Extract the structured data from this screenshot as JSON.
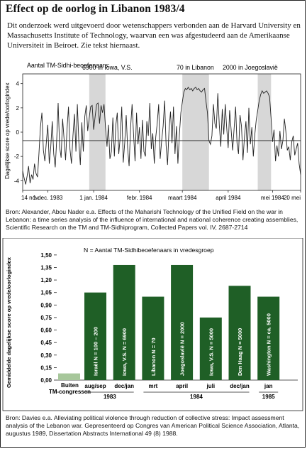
{
  "title": "Effect op de oorlog in Libanon 1983/4",
  "intro": "Dit onderzoek werd uitgevoerd door wetenschappers verbonden aan de Harvard University en Massachusetts Institute of Technology, waarvan een was afgestudeerd aan de Amerikaanse Universiteit in Beiroet. Zie tekst hiernaast.",
  "source1": "Bron: Alexander, Abou Nader e.a. Effects of the Maharishi Technology of the Unified Field on the war in Lebanon: a time series analysis of the influence of international and national coherence creating assemblies, Scientific Research on the TM and TM-Sidhiprogram, Collected Papers vol. IV, 2687-2714",
  "source2": "Bron: Davies e.a. Alleviating political violence through reduction of collective stress: Impact assessment analysis of the Lebanon war. Gepresenteerd op Congres van American Political Science Association, Atlanta, augustus 1989, Dissertation Abstracts International 49 (8) 1988.",
  "colors": {
    "bar": "#1f5f26",
    "bar_control": "#a7c79b",
    "shade": "#d7d7d7",
    "line": "#222222"
  },
  "chart_data": [
    {
      "type": "line",
      "ylabel": "Dagelijkse score op vrede/oorlogindex",
      "legend_title": "Aantal TM-Sidhi-beoefenaars:",
      "x_tick_labels": [
        "14 nov.",
        "1 dec. 1983",
        "1 jan. 1984",
        "febr. 1984",
        "maart 1984",
        "april 1984",
        "mei 1984",
        "20 mei"
      ],
      "y_tick_labels": [
        "4",
        "2",
        "0",
        "-2",
        "-4"
      ],
      "ylim": [
        -4.8,
        4.8
      ],
      "xlim": [
        0,
        188
      ],
      "x_ticks": [
        0,
        17,
        48,
        79,
        108,
        139,
        169,
        188
      ],
      "baseline": -0.7,
      "annotations": [
        {
          "label": "6900 in Iowa, V.S.",
          "start": 45,
          "end": 56
        },
        {
          "label": "70 in Libanon",
          "start": 108,
          "end": 126
        },
        {
          "label": "2000 in Joegoslavië",
          "start": 159,
          "end": 168
        }
      ],
      "series": [
        {
          "values": [
            -3.2,
            -3.8,
            -4.3,
            -3.6,
            -2.8,
            -4.2,
            -3.5,
            -3.9,
            -2.6,
            -3.4,
            -3.7,
            -1.8,
            0.4,
            1.6,
            -1.5,
            -2.4,
            -0.8,
            0.6,
            -2.6,
            -1.2,
            0.9,
            -1.8,
            -2.9,
            -0.6,
            2.4,
            -1.2,
            -2.1,
            1.1,
            -0.6,
            -2.3,
            0.3,
            2.1,
            -1.4,
            -2.6,
            -0.3,
            1.5,
            -1.6,
            2.3,
            -0.8,
            -2.7,
            0.8,
            -1.6,
            1.3,
            2.2,
            0.1,
            1.2,
            2.1,
            2.2,
            0.2,
            1.3,
            2.3,
            2.4,
            0.7,
            2.2,
            1.6,
            2.3,
            0.4,
            -1.2,
            0.6,
            -2.2,
            -1.6,
            1.2,
            -2.0,
            0.6,
            1.6,
            -1.8,
            -0.4,
            2.1,
            -2.5,
            -0.9,
            1.4,
            -1.3,
            -2.8,
            0.4,
            2.3,
            -0.2,
            -2.4,
            1.6,
            -1.0,
            0.4,
            -2.2,
            1.0,
            -1.6,
            -2.0,
            0.9,
            -0.3,
            2.4,
            -1.4,
            -0.1,
            -2.6,
            -0.4,
            0.7,
            2.3,
            -2.2,
            -0.7,
            0.5,
            2.6,
            -1.1,
            -2.7,
            0.2,
            1.7,
            -0.9,
            2.1,
            -1.8,
            0.5,
            -2.6,
            -0.2,
            1.6,
            2.5,
            3.3,
            3.6,
            3.5,
            3.7,
            3.5,
            3.6,
            3.4,
            3.6,
            3.7,
            3.5,
            3.6,
            3.4,
            3.3,
            3.5,
            3.6,
            2.5,
            1.6,
            -0.7,
            -1.0,
            -0.3,
            2.3,
            0.7,
            0.3,
            3.2,
            0.6,
            -1.2,
            1.9,
            -0.2,
            2.3,
            0.4,
            -1.3,
            1.8,
            0.2,
            -1.5,
            0.3,
            2.1,
            -0.9,
            -1.8,
            1.4,
            0.5,
            -2.3,
            -0.4,
            0.9,
            -1.7,
            2.0,
            -1.0,
            0.4,
            -2.0,
            -0.2,
            1.0,
            1.8,
            2.6,
            3.1,
            3.4,
            3.2,
            3.3,
            3.4,
            3.2,
            2.9,
            1.2,
            -0.8,
            0.2,
            -2.4,
            -1.1,
            -2.0,
            0.1,
            -1.4,
            -0.7,
            1.1,
            0.1,
            -1.5,
            -1.2,
            -2.3,
            -0.8,
            -0.3,
            -1.9,
            -1.4,
            -0.9,
            -2.6,
            -3.5
          ]
        }
      ]
    },
    {
      "type": "bar",
      "ylabel": "Gemiddelde dagelijkse score op vrede/oorlogindex",
      "legend": "N = Aantal TM-Sidhibeoefenaars in vredesgroep",
      "ylim": [
        0,
        1.55
      ],
      "y_tick_labels": [
        "1,50",
        "1,35",
        "1,20",
        "1,05",
        "0,90",
        "0,75",
        "0,60",
        "0,45",
        "0,30",
        "0,15",
        "0,00"
      ],
      "bars": [
        {
          "category": "Buiten TM-congressen",
          "value": 0.08,
          "inner_label": "",
          "control": true
        },
        {
          "category": "aug/sep",
          "value": 1.05,
          "inner_label": "Israël N = 100 – 200"
        },
        {
          "category": "dec/jan",
          "value": 1.38,
          "inner_label": "Iowa, V.S. N = 6900"
        },
        {
          "category": "mrt",
          "value": 1.0,
          "inner_label": "Libanon N = 70"
        },
        {
          "category": "april",
          "value": 1.38,
          "inner_label": "Joegoslavië N = 2000"
        },
        {
          "category": "juli",
          "value": 0.75,
          "inner_label": "Iowa, V.S. N = 5000"
        },
        {
          "category": "dec/jan",
          "value": 1.13,
          "inner_label": "Den Haag N = 5000"
        },
        {
          "category": "jan",
          "value": 1.0,
          "inner_label": "Washington N = ca. 5000"
        }
      ],
      "year_labels": [
        {
          "label": "1983",
          "start": 1,
          "end": 2
        },
        {
          "label": "1984",
          "start": 3,
          "end": 6
        },
        {
          "label": "1985",
          "start": 7,
          "end": 7
        }
      ]
    }
  ]
}
